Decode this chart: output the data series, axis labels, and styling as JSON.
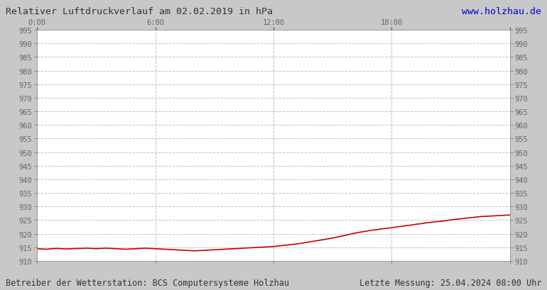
{
  "title_left": "Relativer Luftdruckverlauf am 02.02.2019 in hPa",
  "title_right": "www.holzhau.de",
  "title_right_color": "#0000cc",
  "footer_left": "Betreiber der Wetterstation: BCS Computersysteme Holzhau",
  "footer_right": "Letzte Messung: 25.04.2024 08:00 Uhr",
  "ylim": [
    910,
    995
  ],
  "xlim": [
    0,
    1440
  ],
  "ytick_step": 5,
  "xticks": [
    0,
    360,
    720,
    1080,
    1440
  ],
  "xtick_labels": [
    "0:00",
    "6:00",
    "12:00",
    "18:00",
    ""
  ],
  "background_color": "#c8c8c8",
  "plot_bg_color": "#ffffff",
  "line_color": "#cc0000",
  "line_width": 1.2,
  "grid_color": "#c0c0c0",
  "grid_style": "--",
  "pressure_data": [
    [
      0,
      914.5
    ],
    [
      15,
      914.4
    ],
    [
      30,
      914.3
    ],
    [
      45,
      914.5
    ],
    [
      60,
      914.6
    ],
    [
      75,
      914.5
    ],
    [
      90,
      914.4
    ],
    [
      105,
      914.5
    ],
    [
      120,
      914.6
    ],
    [
      135,
      914.6
    ],
    [
      150,
      914.7
    ],
    [
      165,
      914.6
    ],
    [
      180,
      914.5
    ],
    [
      195,
      914.6
    ],
    [
      210,
      914.7
    ],
    [
      225,
      914.6
    ],
    [
      240,
      914.5
    ],
    [
      255,
      914.4
    ],
    [
      270,
      914.3
    ],
    [
      285,
      914.4
    ],
    [
      300,
      914.5
    ],
    [
      315,
      914.6
    ],
    [
      330,
      914.7
    ],
    [
      345,
      914.6
    ],
    [
      360,
      914.5
    ],
    [
      375,
      914.4
    ],
    [
      390,
      914.3
    ],
    [
      405,
      914.2
    ],
    [
      420,
      914.1
    ],
    [
      435,
      914.0
    ],
    [
      450,
      913.9
    ],
    [
      465,
      913.8
    ],
    [
      480,
      913.7
    ],
    [
      495,
      913.8
    ],
    [
      510,
      913.9
    ],
    [
      525,
      914.0
    ],
    [
      540,
      914.1
    ],
    [
      555,
      914.2
    ],
    [
      570,
      914.3
    ],
    [
      585,
      914.4
    ],
    [
      600,
      914.5
    ],
    [
      615,
      914.6
    ],
    [
      630,
      914.7
    ],
    [
      645,
      914.8
    ],
    [
      660,
      914.9
    ],
    [
      675,
      915.0
    ],
    [
      690,
      915.1
    ],
    [
      705,
      915.2
    ],
    [
      720,
      915.3
    ],
    [
      735,
      915.5
    ],
    [
      750,
      915.7
    ],
    [
      765,
      915.9
    ],
    [
      780,
      916.1
    ],
    [
      795,
      916.3
    ],
    [
      810,
      916.6
    ],
    [
      825,
      916.9
    ],
    [
      840,
      917.2
    ],
    [
      855,
      917.5
    ],
    [
      870,
      917.8
    ],
    [
      885,
      918.1
    ],
    [
      900,
      918.4
    ],
    [
      915,
      918.8
    ],
    [
      930,
      919.2
    ],
    [
      945,
      919.6
    ],
    [
      960,
      920.0
    ],
    [
      975,
      920.4
    ],
    [
      990,
      920.7
    ],
    [
      1005,
      921.0
    ],
    [
      1020,
      921.3
    ],
    [
      1035,
      921.5
    ],
    [
      1050,
      921.8
    ],
    [
      1065,
      922.0
    ],
    [
      1080,
      922.2
    ],
    [
      1095,
      922.5
    ],
    [
      1110,
      922.7
    ],
    [
      1125,
      923.0
    ],
    [
      1140,
      923.2
    ],
    [
      1155,
      923.5
    ],
    [
      1170,
      923.7
    ],
    [
      1185,
      924.0
    ],
    [
      1200,
      924.2
    ],
    [
      1215,
      924.4
    ],
    [
      1230,
      924.6
    ],
    [
      1245,
      924.8
    ],
    [
      1260,
      925.1
    ],
    [
      1275,
      925.3
    ],
    [
      1290,
      925.5
    ],
    [
      1305,
      925.7
    ],
    [
      1320,
      925.9
    ],
    [
      1335,
      926.1
    ],
    [
      1350,
      926.3
    ],
    [
      1365,
      926.4
    ],
    [
      1380,
      926.5
    ],
    [
      1395,
      926.6
    ],
    [
      1410,
      926.7
    ],
    [
      1425,
      926.8
    ],
    [
      1440,
      926.9
    ]
  ]
}
